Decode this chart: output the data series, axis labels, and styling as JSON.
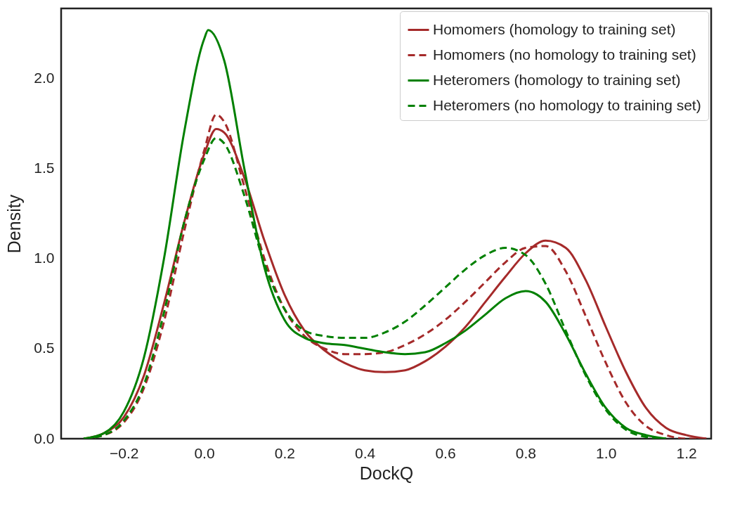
{
  "chart_data": {
    "type": "line",
    "xlabel": "DockQ",
    "ylabel": "Density",
    "xlim": [
      -0.356,
      1.262
    ],
    "ylim": [
      0,
      2.39
    ],
    "xticks": [
      -0.2,
      {
        "value": 0,
        "label": "0.0"
      },
      0.2,
      0.4,
      0.6,
      0.8,
      {
        "value": 1,
        "label": "1.0"
      },
      1.2
    ],
    "yticks": [
      {
        "value": 0,
        "label": "0.0"
      },
      0.5,
      {
        "value": 1,
        "label": "1.0"
      },
      1.5,
      {
        "value": 2,
        "label": "2.0"
      }
    ],
    "grid": false,
    "legend": "top right",
    "series": [
      {
        "name": "Homomers (homology to training set)",
        "color": "#a52a2a",
        "line_style": "solid",
        "x": [
          -0.3,
          -0.25,
          -0.2,
          -0.15,
          -0.1,
          -0.05,
          0,
          0.03,
          0.05,
          0.1,
          0.15,
          0.2,
          0.25,
          0.3,
          0.35,
          0.4,
          0.45,
          0.5,
          0.55,
          0.6,
          0.65,
          0.7,
          0.75,
          0.8,
          0.85,
          0.9,
          0.95,
          1,
          1.05,
          1.1,
          1.15,
          1.2,
          1.25
        ],
        "values": [
          0,
          0.03,
          0.12,
          0.35,
          0.75,
          1.2,
          1.58,
          1.72,
          1.7,
          1.45,
          1.1,
          0.8,
          0.6,
          0.49,
          0.42,
          0.38,
          0.37,
          0.38,
          0.43,
          0.51,
          0.62,
          0.76,
          0.9,
          1.03,
          1.1,
          1.06,
          0.88,
          0.62,
          0.37,
          0.17,
          0.06,
          0.02,
          0
        ]
      },
      {
        "name": "Homomers (no homology to training set)",
        "color": "#a52a2a",
        "line_style": "dashed",
        "x": [
          -0.3,
          -0.25,
          -0.2,
          -0.15,
          -0.1,
          -0.05,
          0,
          0.03,
          0.05,
          0.1,
          0.15,
          0.2,
          0.25,
          0.3,
          0.35,
          0.4,
          0.45,
          0.5,
          0.55,
          0.6,
          0.65,
          0.7,
          0.75,
          0.8,
          0.85,
          0.9,
          0.95,
          1,
          1.05,
          1.1,
          1.15,
          1.2,
          1.25
        ],
        "values": [
          0,
          0.02,
          0.09,
          0.28,
          0.65,
          1.15,
          1.6,
          1.8,
          1.76,
          1.4,
          1,
          0.72,
          0.57,
          0.5,
          0.47,
          0.47,
          0.48,
          0.52,
          0.58,
          0.66,
          0.76,
          0.87,
          0.98,
          1.06,
          1.07,
          0.93,
          0.68,
          0.42,
          0.2,
          0.07,
          0.02,
          0,
          0
        ]
      },
      {
        "name": "Heteromers (homology to training set)",
        "color": "#008000",
        "line_style": "solid",
        "x": [
          -0.3,
          -0.25,
          -0.2,
          -0.15,
          -0.1,
          -0.05,
          0,
          0.01,
          0.05,
          0.1,
          0.15,
          0.2,
          0.25,
          0.3,
          0.35,
          0.4,
          0.45,
          0.5,
          0.55,
          0.6,
          0.65,
          0.7,
          0.75,
          0.8,
          0.85,
          0.9,
          0.95,
          1,
          1.05,
          1.1,
          1.15
        ],
        "values": [
          0,
          0.03,
          0.15,
          0.45,
          1,
          1.7,
          2.22,
          2.27,
          2.1,
          1.5,
          0.95,
          0.66,
          0.56,
          0.53,
          0.52,
          0.5,
          0.48,
          0.47,
          0.48,
          0.53,
          0.6,
          0.69,
          0.78,
          0.82,
          0.76,
          0.58,
          0.36,
          0.17,
          0.06,
          0.02,
          0
        ]
      },
      {
        "name": "Heteromers (no homology to training set)",
        "color": "#008000",
        "line_style": "dashed",
        "x": [
          -0.3,
          -0.25,
          -0.2,
          -0.15,
          -0.1,
          -0.05,
          0,
          0.03,
          0.05,
          0.1,
          0.15,
          0.2,
          0.25,
          0.3,
          0.35,
          0.4,
          0.45,
          0.5,
          0.55,
          0.6,
          0.65,
          0.7,
          0.75,
          0.8,
          0.85,
          0.9,
          0.95,
          1,
          1.05,
          1.1,
          1.15
        ],
        "values": [
          0,
          0.02,
          0.1,
          0.3,
          0.7,
          1.2,
          1.55,
          1.67,
          1.64,
          1.35,
          0.97,
          0.72,
          0.6,
          0.57,
          0.56,
          0.56,
          0.59,
          0.65,
          0.74,
          0.84,
          0.94,
          1.02,
          1.06,
          1.02,
          0.86,
          0.6,
          0.35,
          0.16,
          0.05,
          0.01,
          0
        ]
      }
    ]
  }
}
